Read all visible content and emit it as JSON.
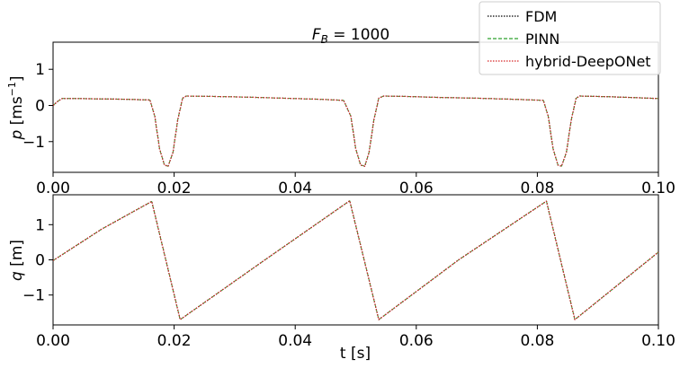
{
  "chart_data": [
    {
      "type": "line",
      "title": "F_B = 1000",
      "title_main": "F",
      "title_sub": "B",
      "title_rest": " = 1000",
      "ylabel": "p [ms⁻¹]",
      "xlabel": "",
      "xlim": [
        0.0,
        0.1
      ],
      "ylim": [
        -1.85,
        1.75
      ],
      "xticks": [
        "0.00",
        "0.02",
        "0.04",
        "0.06",
        "0.08",
        "0.10"
      ],
      "yticks": [
        "1",
        "0",
        "−1"
      ],
      "ytick_values": [
        1,
        0,
        -1
      ],
      "grid": false,
      "series": [
        {
          "name": "FDM",
          "color": "#000000",
          "x": [
            0.0,
            0.0008,
            0.0015,
            0.004,
            0.008,
            0.012,
            0.016,
            0.0168,
            0.0176,
            0.0184,
            0.019,
            0.0198,
            0.0206,
            0.0214,
            0.022,
            0.026,
            0.032,
            0.038,
            0.044,
            0.048,
            0.0492,
            0.05,
            0.0508,
            0.0515,
            0.0522,
            0.053,
            0.0538,
            0.0546,
            0.058,
            0.064,
            0.07,
            0.076,
            0.081,
            0.0818,
            0.0826,
            0.0834,
            0.084,
            0.0848,
            0.0856,
            0.0864,
            0.087,
            0.092,
            0.097,
            0.1
          ],
          "y": [
            0.0,
            0.12,
            0.19,
            0.19,
            0.18,
            0.17,
            0.15,
            -0.3,
            -1.2,
            -1.65,
            -1.68,
            -1.3,
            -0.4,
            0.2,
            0.26,
            0.25,
            0.23,
            0.2,
            0.17,
            0.14,
            -0.3,
            -1.2,
            -1.65,
            -1.68,
            -1.3,
            -0.4,
            0.2,
            0.26,
            0.25,
            0.22,
            0.2,
            0.17,
            0.14,
            -0.3,
            -1.2,
            -1.65,
            -1.68,
            -1.3,
            -0.4,
            0.2,
            0.26,
            0.24,
            0.21,
            0.19
          ]
        },
        {
          "name": "PINN",
          "color": "#2ca02c",
          "x": [
            0.0,
            0.0008,
            0.0015,
            0.004,
            0.008,
            0.012,
            0.016,
            0.0168,
            0.0176,
            0.0184,
            0.019,
            0.0198,
            0.0206,
            0.0214,
            0.022,
            0.026,
            0.032,
            0.038,
            0.044,
            0.048,
            0.0492,
            0.05,
            0.0508,
            0.0515,
            0.0522,
            0.053,
            0.0538,
            0.0546,
            0.058,
            0.064,
            0.07,
            0.076,
            0.081,
            0.0818,
            0.0826,
            0.0834,
            0.084,
            0.0848,
            0.0856,
            0.0864,
            0.087,
            0.092,
            0.097,
            0.1
          ],
          "y": [
            0.0,
            0.12,
            0.19,
            0.19,
            0.18,
            0.17,
            0.15,
            -0.3,
            -1.2,
            -1.65,
            -1.68,
            -1.3,
            -0.4,
            0.2,
            0.26,
            0.25,
            0.23,
            0.2,
            0.17,
            0.14,
            -0.3,
            -1.2,
            -1.65,
            -1.68,
            -1.3,
            -0.4,
            0.2,
            0.26,
            0.25,
            0.22,
            0.2,
            0.17,
            0.14,
            -0.3,
            -1.2,
            -1.65,
            -1.68,
            -1.3,
            -0.4,
            0.2,
            0.26,
            0.24,
            0.21,
            0.19
          ]
        },
        {
          "name": "hybrid-DeepONet",
          "color": "#d62728",
          "x": [
            0.0,
            0.0008,
            0.0015,
            0.004,
            0.008,
            0.012,
            0.016,
            0.0168,
            0.0176,
            0.0184,
            0.019,
            0.0198,
            0.0206,
            0.0214,
            0.022,
            0.026,
            0.032,
            0.038,
            0.044,
            0.048,
            0.0492,
            0.05,
            0.0508,
            0.0515,
            0.0522,
            0.053,
            0.0538,
            0.0546,
            0.058,
            0.064,
            0.07,
            0.076,
            0.081,
            0.0818,
            0.0826,
            0.0834,
            0.084,
            0.0848,
            0.0856,
            0.0864,
            0.087,
            0.092,
            0.097,
            0.1
          ],
          "y": [
            0.0,
            0.12,
            0.19,
            0.19,
            0.18,
            0.17,
            0.15,
            -0.3,
            -1.2,
            -1.65,
            -1.68,
            -1.3,
            -0.4,
            0.2,
            0.26,
            0.25,
            0.23,
            0.2,
            0.17,
            0.14,
            -0.3,
            -1.2,
            -1.65,
            -1.68,
            -1.3,
            -0.4,
            0.2,
            0.26,
            0.25,
            0.22,
            0.2,
            0.17,
            0.14,
            -0.3,
            -1.2,
            -1.65,
            -1.68,
            -1.3,
            -0.4,
            0.2,
            0.26,
            0.24,
            0.21,
            0.19
          ]
        }
      ]
    },
    {
      "type": "line",
      "title": "",
      "ylabel": "q [m]",
      "xlabel": "t [s]",
      "xlim": [
        0.0,
        0.1
      ],
      "ylim": [
        -1.85,
        1.85
      ],
      "xticks": [
        "0.00",
        "0.02",
        "0.04",
        "0.06",
        "0.08",
        "0.10"
      ],
      "yticks": [
        "1",
        "0",
        "−1"
      ],
      "ytick_values": [
        1,
        0,
        -1
      ],
      "grid": false,
      "series": [
        {
          "name": "FDM",
          "color": "#000000",
          "x": [
            0.0,
            0.008,
            0.0163,
            0.021,
            0.035,
            0.049,
            0.0538,
            0.067,
            0.0815,
            0.0862,
            0.1
          ],
          "y": [
            -0.02,
            0.87,
            1.66,
            -1.7,
            0.0,
            1.68,
            -1.7,
            0.0,
            1.67,
            -1.7,
            0.22
          ]
        },
        {
          "name": "PINN",
          "color": "#2ca02c",
          "x": [
            0.0,
            0.008,
            0.0163,
            0.021,
            0.035,
            0.049,
            0.0538,
            0.067,
            0.0815,
            0.0862,
            0.1
          ],
          "y": [
            -0.02,
            0.87,
            1.66,
            -1.7,
            0.0,
            1.68,
            -1.7,
            0.0,
            1.67,
            -1.7,
            0.22
          ]
        },
        {
          "name": "hybrid-DeepONet",
          "color": "#d62728",
          "x": [
            0.0,
            0.008,
            0.0163,
            0.021,
            0.035,
            0.049,
            0.0538,
            0.067,
            0.0815,
            0.0862,
            0.1
          ],
          "y": [
            -0.02,
            0.87,
            1.66,
            -1.7,
            0.0,
            1.68,
            -1.7,
            0.0,
            1.67,
            -1.7,
            0.22
          ]
        }
      ]
    }
  ],
  "legend": {
    "placement": "top-right",
    "entries": [
      {
        "label": "FDM",
        "color": "#000000",
        "dash": "1.5,1.5"
      },
      {
        "label": "PINN",
        "color": "#2ca02c",
        "dash": "4,2"
      },
      {
        "label": "hybrid-DeepONet",
        "color": "#d62728",
        "dash": "1.5,1.5"
      }
    ]
  }
}
